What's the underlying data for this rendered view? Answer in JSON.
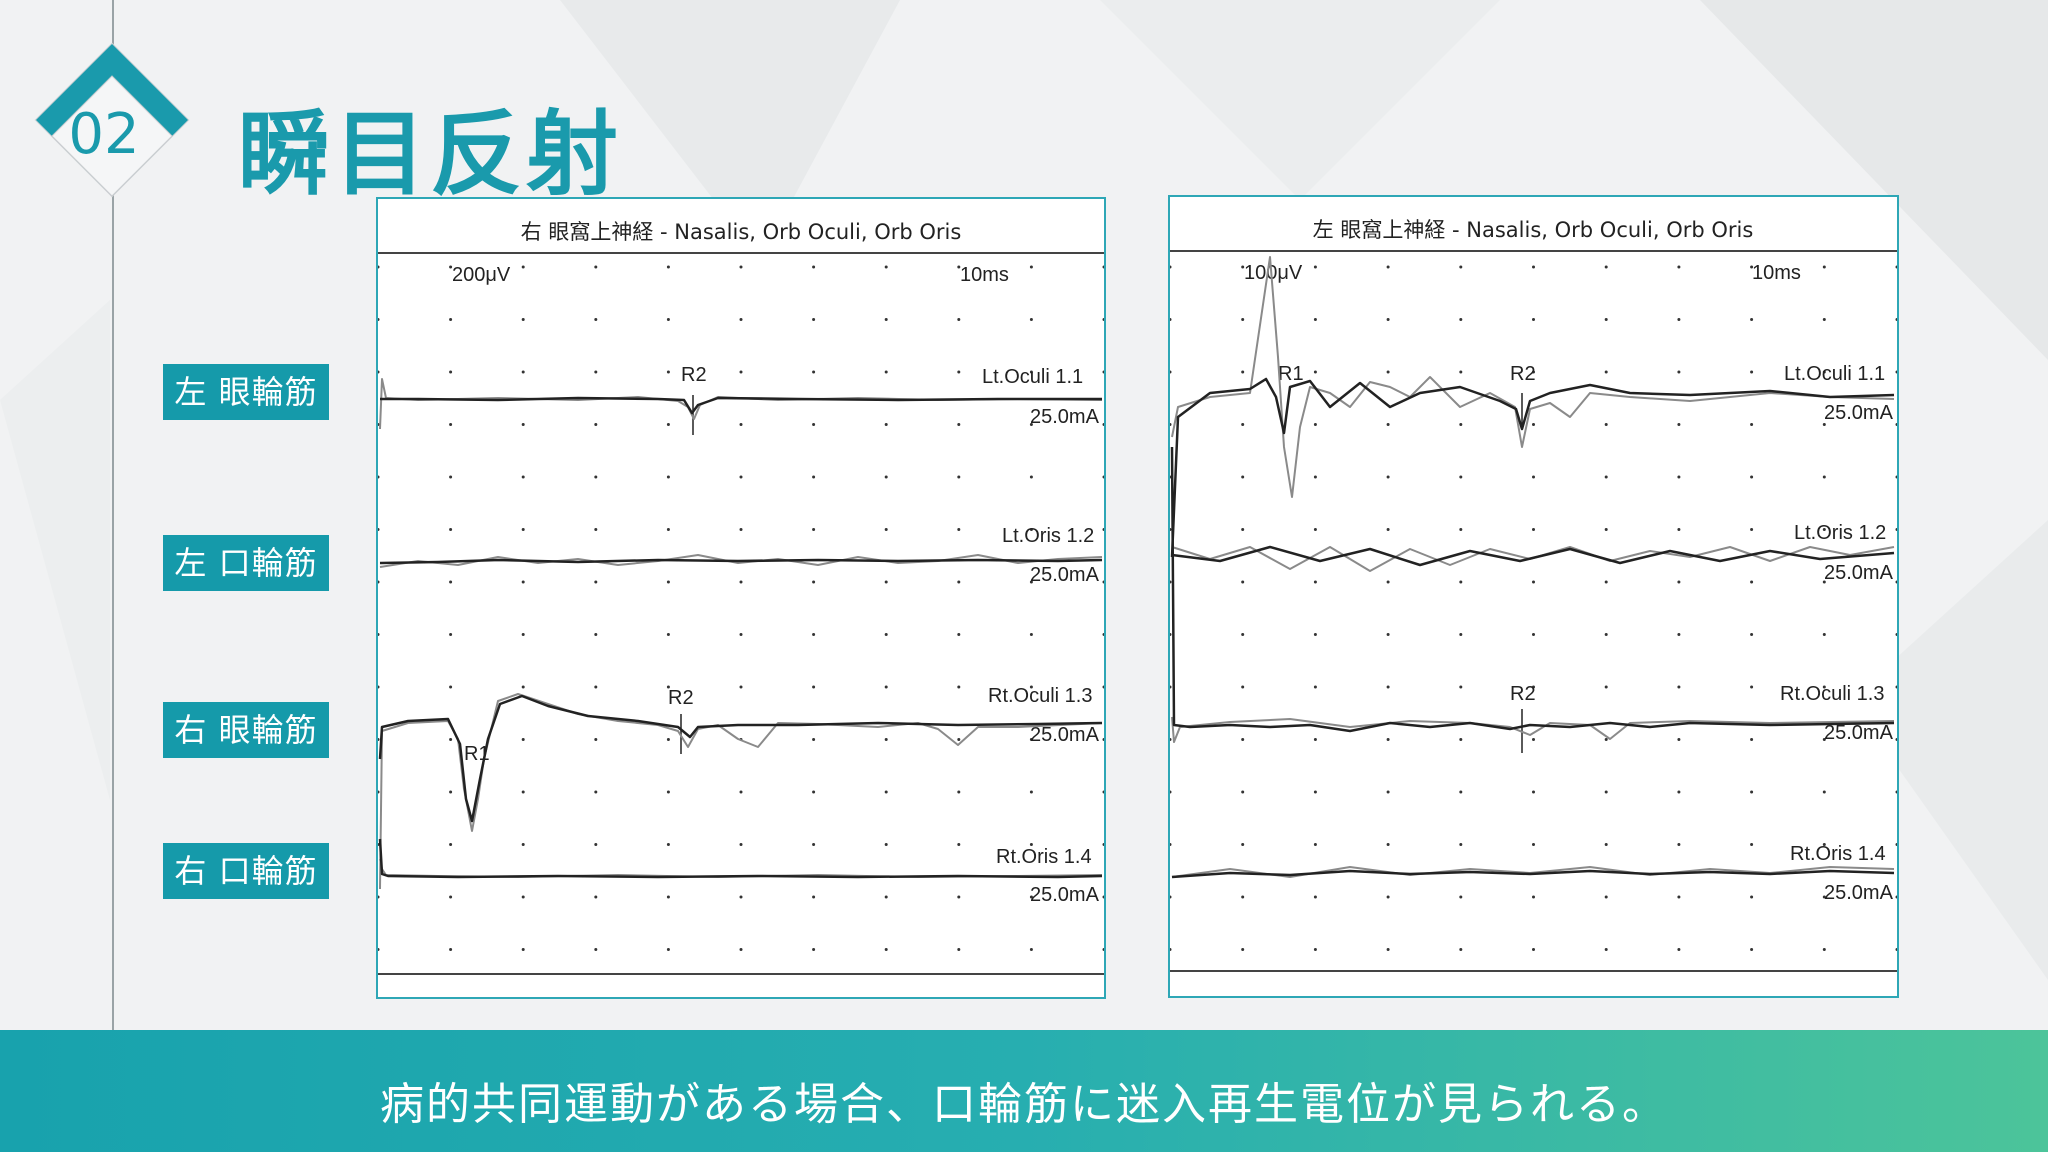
{
  "badge_number": "02",
  "title": "瞬目反射",
  "row_labels": [
    "左 眼輪筋",
    "左 口輪筋",
    "右 眼輪筋",
    "右 口輪筋"
  ],
  "panels": [
    {
      "header": "右 眼窩上神経 - Nasalis, Orb Oculi, Orb Oris",
      "amp_scale": "200μV",
      "time_scale": "10ms",
      "channels": [
        {
          "name": "Lt.Oculi 1.1",
          "current": "25.0mA"
        },
        {
          "name": "Lt.Oris 1.2",
          "current": "25.0mA"
        },
        {
          "name": "Rt.Oculi 1.3",
          "current": "25.0mA"
        },
        {
          "name": "Rt.Oris 1.4",
          "current": "25.0mA"
        }
      ],
      "markers": [
        "R2",
        "R2",
        "R1"
      ]
    },
    {
      "header": "左 眼窩上神経 - Nasalis, Orb Oculi, Orb Oris",
      "amp_scale": "100μV",
      "time_scale": "10ms",
      "channels": [
        {
          "name": "Lt.Oculi 1.1",
          "current": "25.0mA"
        },
        {
          "name": "Lt.Oris 1.2",
          "current": "25.0mA"
        },
        {
          "name": "Rt.Oculi 1.3",
          "current": "25.0mA"
        },
        {
          "name": "Rt.Oris 1.4",
          "current": "25.0mA"
        }
      ],
      "markers": [
        "R1",
        "R2",
        "R2"
      ]
    }
  ],
  "footer_text": "病的共同運動がある場合、口輪筋に迷入再生電位が見られる。",
  "colors": {
    "accent": "#1a9aac",
    "label_bg": "#159aaa",
    "trace": "#222222",
    "trace_light": "#8a8a8a"
  }
}
